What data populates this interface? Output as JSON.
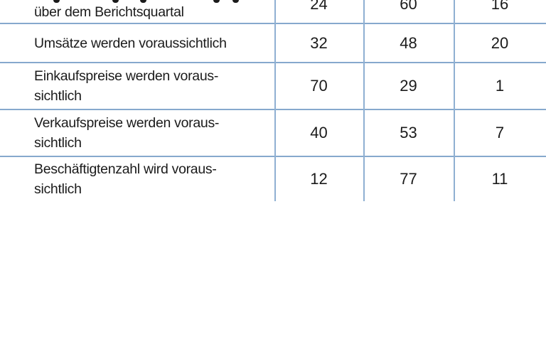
{
  "table": {
    "note": "survey table, first row clipped at top edge of screenshot",
    "rows": [
      {
        "label_lines": [
          "über dem Berichtsquartal"
        ],
        "values": [
          "24",
          "60",
          "16"
        ],
        "clipped_top": true
      },
      {
        "label_lines": [
          "Umsätze werden voraussichtlich"
        ],
        "values": [
          "32",
          "48",
          "20"
        ],
        "clipped_top": false
      },
      {
        "label_lines": [
          "Einkaufspreise werden voraus-",
          "sichtlich"
        ],
        "values": [
          "70",
          "29",
          "1"
        ],
        "clipped_top": false
      },
      {
        "label_lines": [
          "Verkaufspreise werden voraus-",
          "sichtlich"
        ],
        "values": [
          "40",
          "53",
          "7"
        ],
        "clipped_top": false
      },
      {
        "label_lines": [
          "Beschäftigtenzahl wird voraus-",
          "sichtlich"
        ],
        "values": [
          "12",
          "77",
          "11"
        ],
        "clipped_top": false
      }
    ],
    "colors": {
      "rule_line": "#86a9cd",
      "text": "#1b1b1b",
      "background": "#ffffff"
    }
  },
  "clipped_fragments_x": [
    75,
    158,
    197,
    300,
    327
  ],
  "chart_data": {
    "type": "table",
    "categories": [
      "über dem Berichtsquartal (clipped row)",
      "Umsätze werden voraussichtlich",
      "Einkaufspreise werden voraussichtlich",
      "Verkaufspreise werden voraussichtlich",
      "Beschäftigtenzahl wird voraussichtlich"
    ],
    "series": [
      {
        "name": "column-1",
        "values": [
          24,
          32,
          70,
          40,
          12
        ]
      },
      {
        "name": "column-2",
        "values": [
          60,
          48,
          29,
          53,
          77
        ]
      },
      {
        "name": "column-3",
        "values": [
          16,
          20,
          1,
          7,
          11
        ]
      }
    ]
  }
}
